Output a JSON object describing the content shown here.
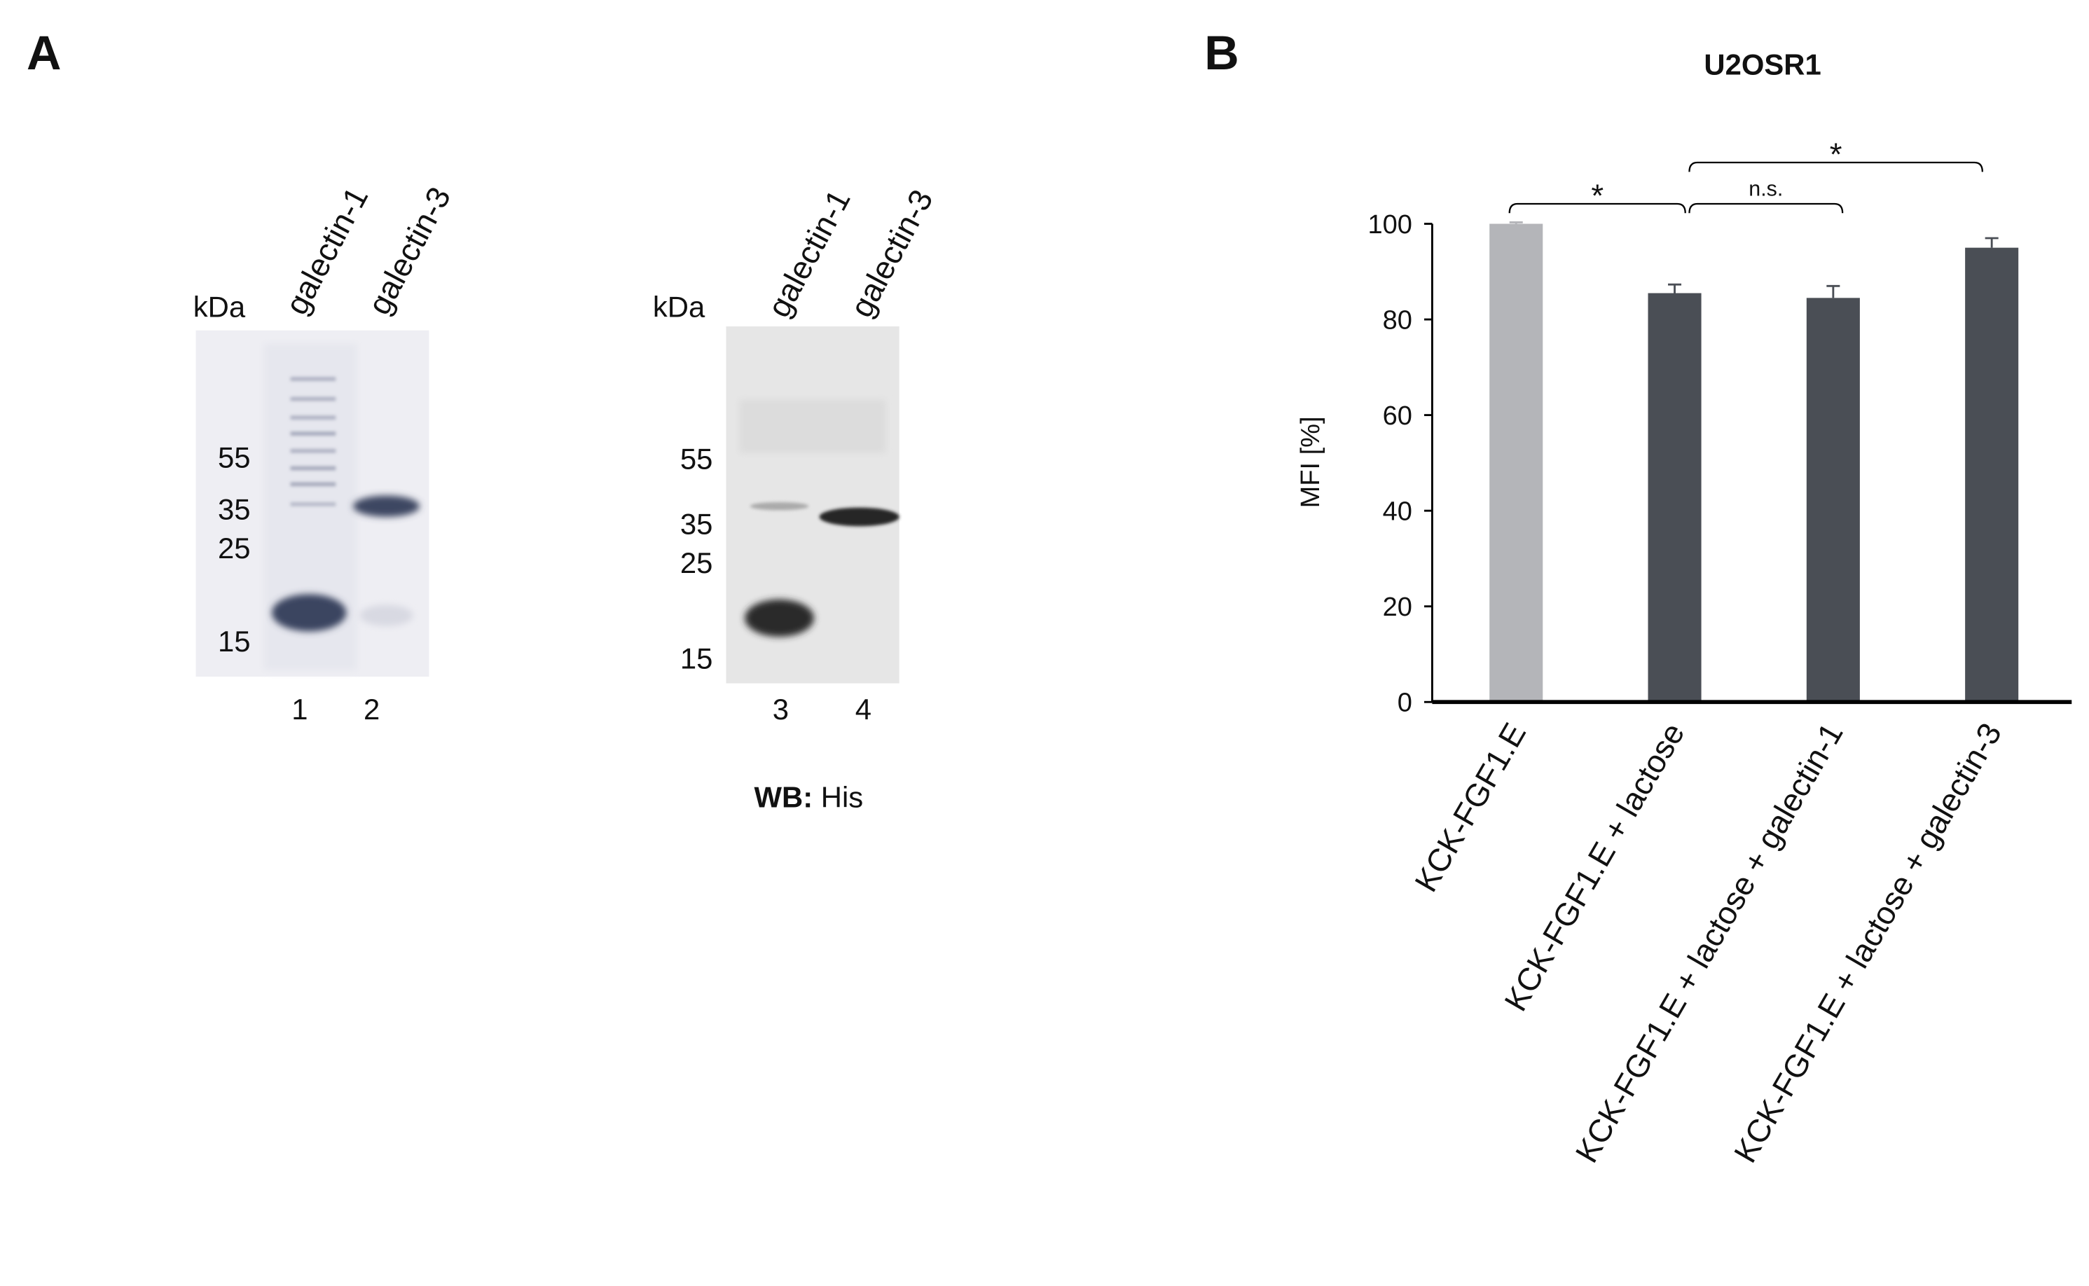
{
  "panel_a": {
    "label": "A",
    "gel1": {
      "kda_label": "kDa",
      "lanes": [
        "galectin-1",
        "galectin-3"
      ],
      "markers": [
        "55",
        "35",
        "25",
        "15"
      ],
      "lane_numbers": [
        "1",
        "2"
      ]
    },
    "gel2": {
      "kda_label": "kDa",
      "lanes": [
        "galectin-1",
        "galectin-3"
      ],
      "markers": [
        "55",
        "35",
        "25",
        "15"
      ],
      "lane_numbers": [
        "3",
        "4"
      ],
      "caption_bold": "WB:",
      "caption": "His"
    }
  },
  "chart_data": {
    "type": "bar",
    "panel_label": "B",
    "title": "U2OSR1",
    "ylabel": "MFI [%]",
    "categories": [
      "KCK-FGF1.E",
      "KCK-FGF1.E + lactose",
      "KCK-FGF1.E + lactose + galectin-1",
      "KCK-FGF1.E + lactose + galectin-3"
    ],
    "values": [
      100,
      85.5,
      84.5,
      95
    ],
    "errors": [
      0.3,
      1.8,
      2.5,
      2
    ],
    "colors": [
      "#b4b5b9",
      "#4a4e55",
      "#4a4e55",
      "#4a4e55"
    ],
    "ylim": [
      0,
      100
    ],
    "yticks": [
      0,
      20,
      40,
      60,
      80,
      100
    ],
    "annotations": [
      "*",
      "n.s.",
      "*"
    ]
  }
}
